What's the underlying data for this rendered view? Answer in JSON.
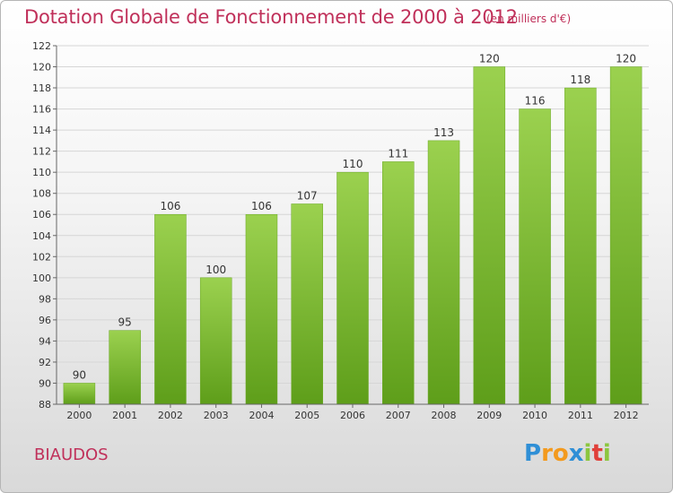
{
  "chart_data": {
    "type": "bar",
    "title": "Dotation Globale de Fonctionnement de 2000 à 2012",
    "units_note": "(en milliers d'€)",
    "categories": [
      "2000",
      "2001",
      "2002",
      "2003",
      "2004",
      "2005",
      "2006",
      "2007",
      "2008",
      "2009",
      "2010",
      "2011",
      "2012"
    ],
    "values": [
      90,
      95,
      106,
      100,
      106,
      107,
      110,
      111,
      113,
      120,
      116,
      118,
      120
    ],
    "ylim": [
      88,
      122
    ],
    "yticks": [
      88,
      90,
      92,
      94,
      96,
      98,
      100,
      102,
      104,
      106,
      108,
      110,
      112,
      114,
      116,
      118,
      120,
      122
    ],
    "grid": true,
    "bar_color": "#7fc234"
  },
  "commune": "BIAUDOS",
  "logo": {
    "letters": [
      "P",
      "r",
      "o",
      "x",
      "i",
      "t",
      "i"
    ],
    "colors": [
      "#2f8fd6",
      "#f39a1e",
      "#f39a1e",
      "#2f8fd6",
      "#8cc63f",
      "#e0403a",
      "#8cc63f"
    ]
  }
}
